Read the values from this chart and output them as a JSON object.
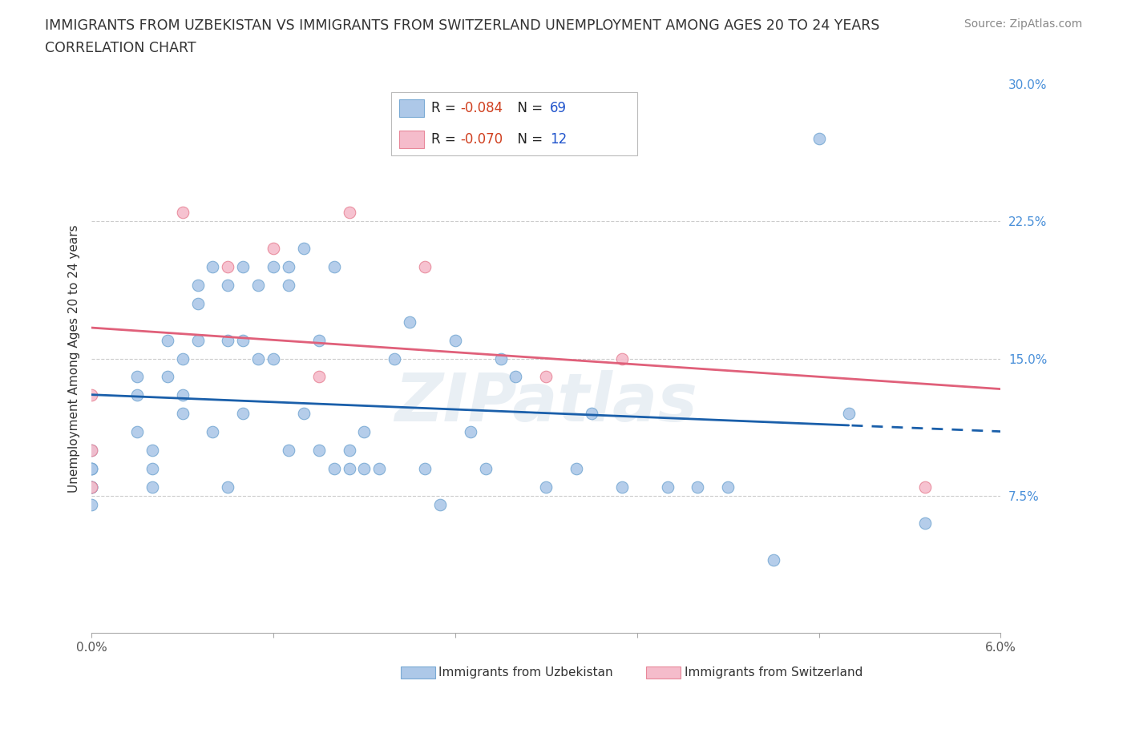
{
  "title_line1": "IMMIGRANTS FROM UZBEKISTAN VS IMMIGRANTS FROM SWITZERLAND UNEMPLOYMENT AMONG AGES 20 TO 24 YEARS",
  "title_line2": "CORRELATION CHART",
  "source": "Source: ZipAtlas.com",
  "ylabel": "Unemployment Among Ages 20 to 24 years",
  "watermark": "ZIPatlas",
  "uzbekistan_color": "#adc8e8",
  "uzbekistan_edge": "#7aaad4",
  "switzerland_color": "#f5bccb",
  "switzerland_edge": "#e8889a",
  "uzbekistan_line_color": "#1a5faa",
  "switzerland_line_color": "#e0607a",
  "R_uzbekistan": -0.084,
  "N_uzbekistan": 69,
  "R_switzerland": -0.07,
  "N_switzerland": 12,
  "uzbekistan_x": [
    0.0,
    0.0,
    0.0,
    0.0,
    0.0,
    0.0,
    0.0,
    0.0,
    0.0,
    0.003,
    0.003,
    0.003,
    0.004,
    0.004,
    0.004,
    0.005,
    0.005,
    0.006,
    0.006,
    0.006,
    0.007,
    0.007,
    0.007,
    0.008,
    0.008,
    0.009,
    0.009,
    0.009,
    0.01,
    0.01,
    0.01,
    0.011,
    0.011,
    0.012,
    0.012,
    0.013,
    0.013,
    0.013,
    0.014,
    0.014,
    0.015,
    0.015,
    0.016,
    0.016,
    0.017,
    0.017,
    0.018,
    0.018,
    0.019,
    0.02,
    0.021,
    0.022,
    0.023,
    0.024,
    0.025,
    0.026,
    0.027,
    0.028,
    0.03,
    0.032,
    0.033,
    0.035,
    0.038,
    0.04,
    0.042,
    0.045,
    0.048,
    0.05,
    0.055
  ],
  "uzbekistan_y": [
    0.1,
    0.09,
    0.09,
    0.09,
    0.08,
    0.08,
    0.08,
    0.08,
    0.07,
    0.14,
    0.13,
    0.11,
    0.1,
    0.09,
    0.08,
    0.16,
    0.14,
    0.15,
    0.13,
    0.12,
    0.19,
    0.18,
    0.16,
    0.2,
    0.11,
    0.19,
    0.16,
    0.08,
    0.2,
    0.16,
    0.12,
    0.19,
    0.15,
    0.15,
    0.2,
    0.2,
    0.19,
    0.1,
    0.21,
    0.12,
    0.16,
    0.1,
    0.2,
    0.09,
    0.1,
    0.09,
    0.11,
    0.09,
    0.09,
    0.15,
    0.17,
    0.09,
    0.07,
    0.16,
    0.11,
    0.09,
    0.15,
    0.14,
    0.08,
    0.09,
    0.12,
    0.08,
    0.08,
    0.08,
    0.08,
    0.04,
    0.27,
    0.12,
    0.06
  ],
  "switzerland_x": [
    0.0,
    0.0,
    0.0,
    0.006,
    0.009,
    0.012,
    0.015,
    0.017,
    0.022,
    0.03,
    0.035,
    0.055
  ],
  "switzerland_y": [
    0.13,
    0.1,
    0.08,
    0.23,
    0.2,
    0.21,
    0.14,
    0.23,
    0.2,
    0.14,
    0.15,
    0.08
  ],
  "xlim": [
    0.0,
    0.06
  ],
  "ylim": [
    0.0,
    0.3
  ],
  "ygrid_vals": [
    0.075,
    0.15,
    0.225
  ],
  "ytick_vals": [
    0.075,
    0.15,
    0.225,
    0.3
  ],
  "ytick_labels": [
    "7.5%",
    "15.0%",
    "22.5%",
    "30.0%"
  ],
  "xtick_vals": [
    0.0,
    0.012,
    0.024,
    0.036,
    0.048,
    0.06
  ],
  "xtick_labels": [
    "0.0%",
    "",
    "",
    "",
    "",
    "6.0%"
  ]
}
